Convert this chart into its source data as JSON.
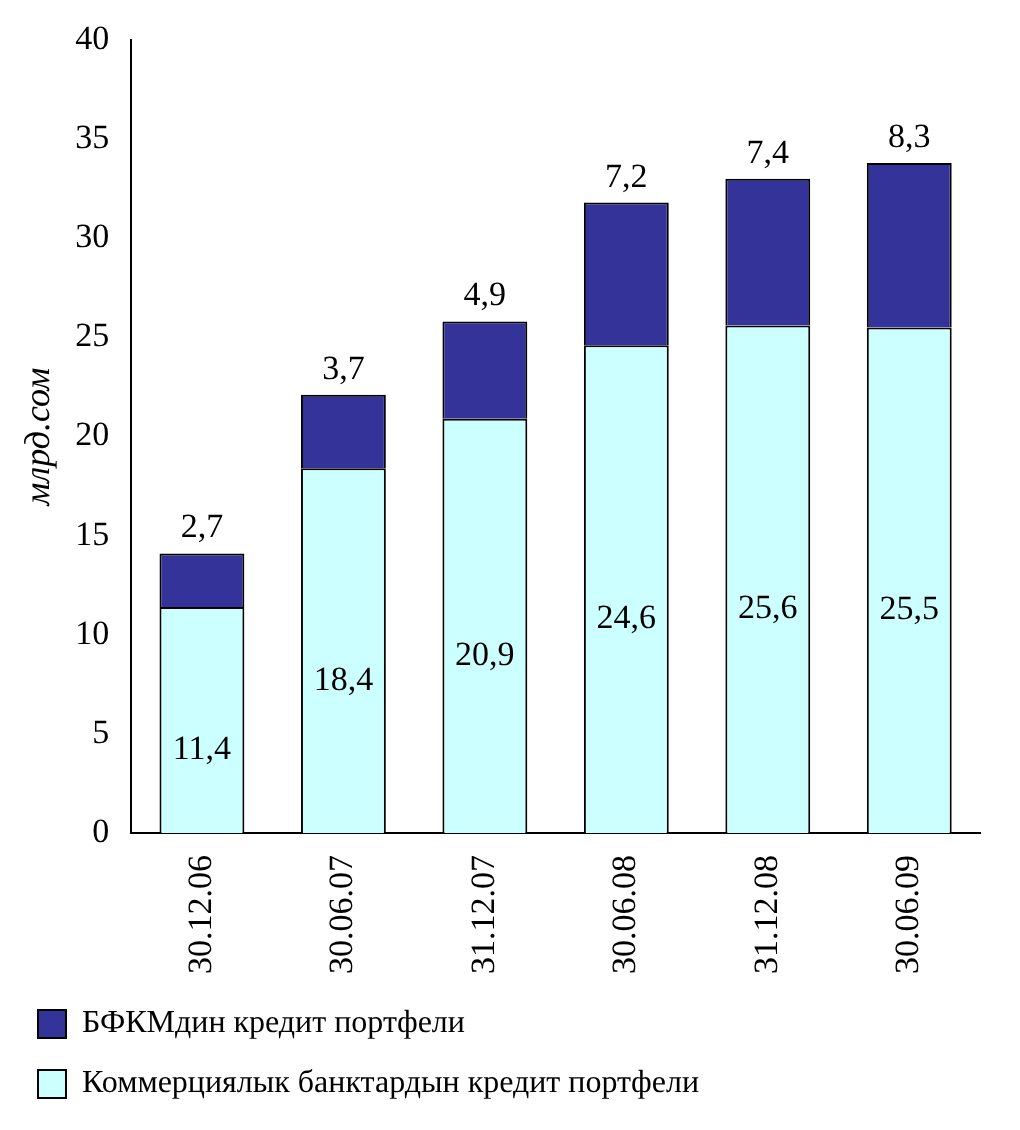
{
  "chart_data": {
    "type": "bar",
    "stacked": true,
    "ylabel": "млрд.сом",
    "categories": [
      "30.12.06",
      "30.06.07",
      "31.12.07",
      "30.06.08",
      "31.12.08",
      "30.06.09"
    ],
    "series": [
      {
        "name": "Коммерциялык банктардын кредит портфели",
        "color": "#ccffff",
        "values": [
          11.4,
          18.4,
          20.9,
          24.6,
          25.6,
          25.5
        ],
        "value_labels": [
          "11,4",
          "18,4",
          "20,9",
          "24,6",
          "25,6",
          "25,5"
        ]
      },
      {
        "name": "БФКМдин кредит портфели",
        "color": "#333399",
        "values": [
          2.7,
          3.7,
          4.9,
          7.2,
          7.4,
          8.3
        ],
        "value_labels": [
          "2,7",
          "3,7",
          "4,9",
          "7,2",
          "7,4",
          "8,3"
        ]
      }
    ],
    "ylim": [
      0,
      40
    ],
    "yticks": [
      0,
      5,
      10,
      15,
      20,
      25,
      30,
      35,
      40
    ],
    "grid": false,
    "legend": "bottom"
  }
}
